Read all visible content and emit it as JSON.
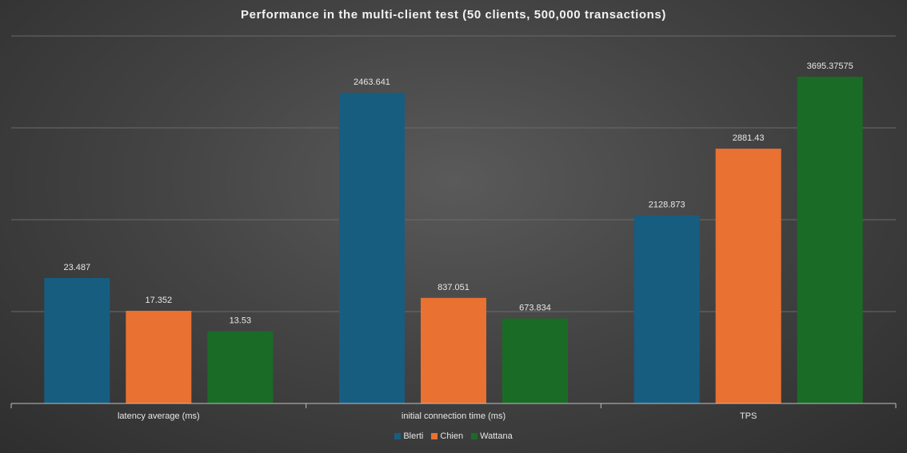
{
  "chart_data": {
    "type": "bar",
    "title": "Performance in the multi-client  test (50 clients, 500,000 transactions)",
    "categories": [
      "latency average (ms)",
      "initial connection time (ms)",
      "TPS"
    ],
    "series": [
      {
        "name": "Blerti",
        "color": "#175d80",
        "values": [
          23.487,
          2463.641,
          2128.873
        ],
        "labels": [
          "23.487",
          "2463.641",
          "2128.873"
        ]
      },
      {
        "name": "Chien",
        "color": "#e97132",
        "values": [
          17.352,
          837.051,
          2881.43
        ],
        "labels": [
          "17.352",
          "837.051",
          "2881.43"
        ]
      },
      {
        "name": "Wattana",
        "color": "#1a6b26",
        "values": [
          13.53,
          673.834,
          3695.37575
        ],
        "labels": [
          "13.53",
          "673.834",
          "3695.37575"
        ]
      }
    ],
    "legend_position": "bottom",
    "grid": true
  }
}
